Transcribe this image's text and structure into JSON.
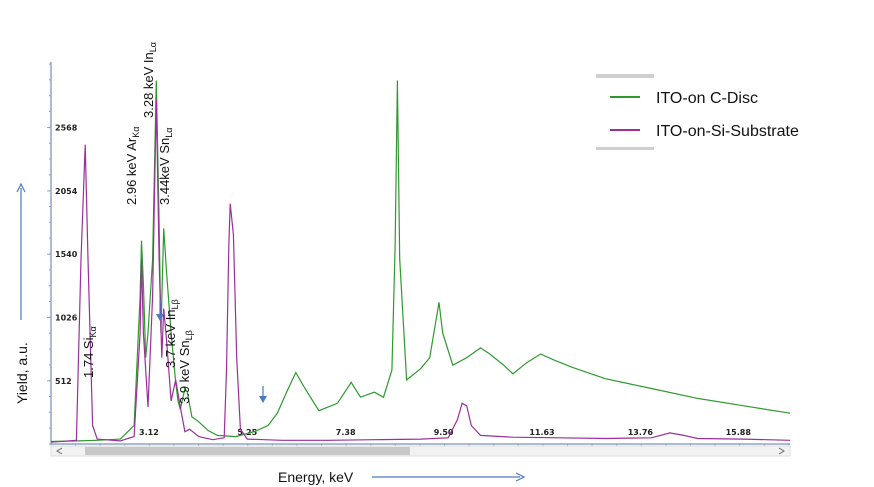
{
  "chart_data": {
    "type": "line",
    "xlabel": "Energy, keV",
    "ylabel": "Yield, a.u.",
    "x_ticks": [
      "3.12",
      "5.25",
      "7.38",
      "9.50",
      "11.63",
      "13.76",
      "15.88"
    ],
    "y_ticks": [
      "512",
      "1026",
      "1540",
      "2054",
      "2568"
    ],
    "xlim": [
      1.0,
      17.0
    ],
    "ylim": [
      0,
      3100
    ],
    "legend_position": "top-right",
    "series": [
      {
        "name": "ITO-on C-Disc",
        "color": "#2e9a2e",
        "points": [
          [
            1.0,
            20
          ],
          [
            1.6,
            25
          ],
          [
            2.0,
            30
          ],
          [
            2.5,
            40
          ],
          [
            2.8,
            150
          ],
          [
            2.93,
            1200
          ],
          [
            2.96,
            1650
          ],
          [
            3.0,
            1300
          ],
          [
            3.05,
            700
          ],
          [
            3.1,
            900
          ],
          [
            3.2,
            1500
          ],
          [
            3.28,
            2950
          ],
          [
            3.34,
            1800
          ],
          [
            3.38,
            900
          ],
          [
            3.44,
            1750
          ],
          [
            3.5,
            1400
          ],
          [
            3.6,
            900
          ],
          [
            3.7,
            500
          ],
          [
            3.75,
            350
          ],
          [
            3.8,
            280
          ],
          [
            3.9,
            450
          ],
          [
            3.95,
            420
          ],
          [
            4.05,
            220
          ],
          [
            4.2,
            180
          ],
          [
            4.4,
            110
          ],
          [
            4.6,
            70
          ],
          [
            5.0,
            60
          ],
          [
            5.4,
            100
          ],
          [
            5.7,
            150
          ],
          [
            5.9,
            250
          ],
          [
            6.1,
            420
          ],
          [
            6.3,
            580
          ],
          [
            6.5,
            450
          ],
          [
            6.8,
            270
          ],
          [
            7.2,
            330
          ],
          [
            7.5,
            500
          ],
          [
            7.7,
            380
          ],
          [
            8.0,
            420
          ],
          [
            8.2,
            380
          ],
          [
            8.38,
            600
          ],
          [
            8.45,
            1600
          ],
          [
            8.5,
            2950
          ],
          [
            8.55,
            1500
          ],
          [
            8.7,
            520
          ],
          [
            9.0,
            610
          ],
          [
            9.2,
            700
          ],
          [
            9.4,
            1150
          ],
          [
            9.48,
            900
          ],
          [
            9.7,
            640
          ],
          [
            10.0,
            700
          ],
          [
            10.3,
            780
          ],
          [
            10.5,
            730
          ],
          [
            10.8,
            640
          ],
          [
            11.0,
            570
          ],
          [
            11.3,
            660
          ],
          [
            11.6,
            730
          ],
          [
            11.9,
            680
          ],
          [
            12.3,
            620
          ],
          [
            13.0,
            530
          ],
          [
            14.0,
            450
          ],
          [
            15.0,
            370
          ],
          [
            16.0,
            310
          ],
          [
            17.0,
            250
          ]
        ]
      },
      {
        "name": "ITO-on-Si-Substrate",
        "color": "#9b2f9b",
        "points": [
          [
            1.0,
            15
          ],
          [
            1.55,
            30
          ],
          [
            1.65,
            1500
          ],
          [
            1.74,
            2430
          ],
          [
            1.8,
            1500
          ],
          [
            1.9,
            150
          ],
          [
            2.0,
            40
          ],
          [
            2.5,
            25
          ],
          [
            2.8,
            60
          ],
          [
            2.93,
            900
          ],
          [
            2.96,
            1500
          ],
          [
            3.0,
            900
          ],
          [
            3.1,
            300
          ],
          [
            3.2,
            1200
          ],
          [
            3.28,
            2800
          ],
          [
            3.34,
            1500
          ],
          [
            3.4,
            700
          ],
          [
            3.44,
            1100
          ],
          [
            3.5,
            850
          ],
          [
            3.6,
            350
          ],
          [
            3.7,
            520
          ],
          [
            3.8,
            300
          ],
          [
            3.9,
            100
          ],
          [
            4.0,
            120
          ],
          [
            4.2,
            60
          ],
          [
            4.5,
            35
          ],
          [
            4.75,
            50
          ],
          [
            4.8,
            600
          ],
          [
            4.85,
            1600
          ],
          [
            4.88,
            1950
          ],
          [
            4.95,
            1700
          ],
          [
            5.02,
            700
          ],
          [
            5.1,
            120
          ],
          [
            5.25,
            40
          ],
          [
            6.0,
            30
          ],
          [
            7.0,
            30
          ],
          [
            8.0,
            35
          ],
          [
            9.0,
            40
          ],
          [
            9.6,
            50
          ],
          [
            9.8,
            200
          ],
          [
            9.9,
            330
          ],
          [
            10.0,
            310
          ],
          [
            10.1,
            150
          ],
          [
            10.3,
            70
          ],
          [
            11.0,
            55
          ],
          [
            12.0,
            50
          ],
          [
            13.0,
            45
          ],
          [
            14.0,
            50
          ],
          [
            14.4,
            90
          ],
          [
            14.7,
            70
          ],
          [
            15.0,
            45
          ],
          [
            16.0,
            40
          ],
          [
            17.0,
            30
          ]
        ]
      }
    ],
    "annotations": [
      {
        "main": "1.74 Si",
        "sub": "Kα"
      },
      {
        "main": "2.96 keV Ar",
        "sub": "Kα"
      },
      {
        "main": "3.28 keV In",
        "sub": "Lα"
      },
      {
        "main": "3.44keV Sn",
        "sub": "Lα"
      },
      {
        "main": "3.7 keV In",
        "sub": "Lβ"
      },
      {
        "main": "3.9 keV Sn",
        "sub": "Lβ"
      }
    ]
  }
}
